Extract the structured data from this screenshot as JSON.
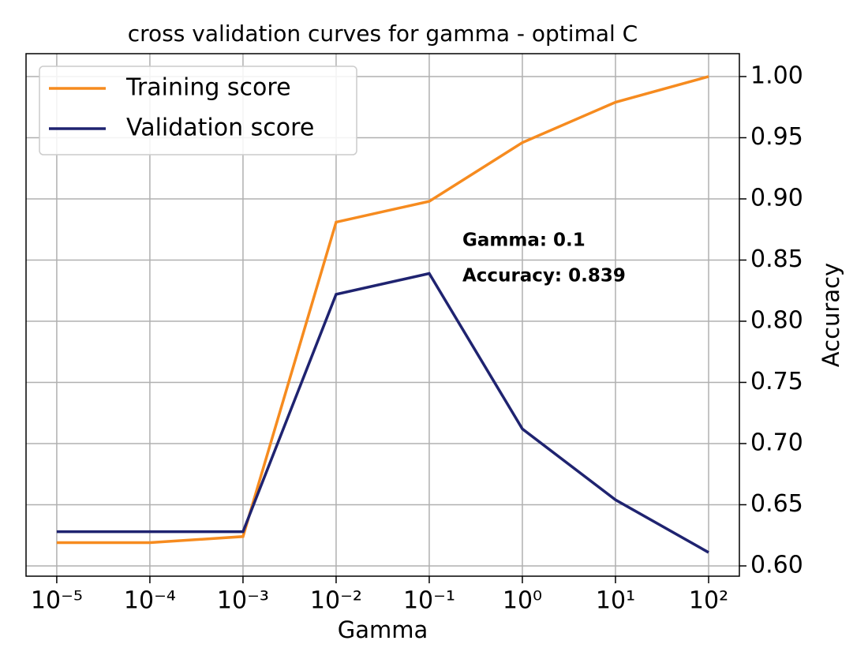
{
  "chart_data": {
    "type": "line",
    "title": "cross validation curves for gamma - optimal C",
    "x_label": "Gamma",
    "y_label": "Accuracy",
    "x": [
      1e-05,
      0.0001,
      0.001,
      0.01,
      0.1,
      1,
      10,
      100
    ],
    "series": [
      {
        "name": "Training score",
        "color": "#f68b1f",
        "values": [
          0.619,
          0.619,
          0.624,
          0.881,
          0.898,
          0.946,
          0.979,
          1.0
        ]
      },
      {
        "name": "Validation score",
        "color": "#1f2370",
        "values": [
          0.628,
          0.628,
          0.628,
          0.822,
          0.839,
          0.712,
          0.654,
          0.611
        ]
      }
    ],
    "annotations": [
      "Gamma: 0.1",
      "Accuracy: 0.839"
    ],
    "annotation_color": "#1f2370",
    "x_scale": "log",
    "y_axis_side": "right",
    "xlim": [
      4.68e-06,
      214
    ],
    "ylim": [
      0.5916,
      1.0187
    ],
    "xticks": [
      {
        "value": 1e-05,
        "label": "10⁻⁵"
      },
      {
        "value": 0.0001,
        "label": "10⁻⁴"
      },
      {
        "value": 0.001,
        "label": "10⁻³"
      },
      {
        "value": 0.01,
        "label": "10⁻²"
      },
      {
        "value": 0.1,
        "label": "10⁻¹"
      },
      {
        "value": 1,
        "label": "10⁰"
      },
      {
        "value": 10,
        "label": "10¹"
      },
      {
        "value": 100,
        "label": "10²"
      }
    ],
    "yticks": [
      {
        "value": 0.6,
        "label": "0.60"
      },
      0.65,
      {
        "value": 0.7,
        "label": "0.70"
      },
      0.75,
      {
        "value": 0.8,
        "label": "0.80"
      },
      0.85,
      {
        "value": 0.9,
        "label": "0.90"
      },
      0.95,
      {
        "value": 1.0,
        "label": "1.00"
      }
    ],
    "grid": true,
    "legend": "upper left"
  }
}
